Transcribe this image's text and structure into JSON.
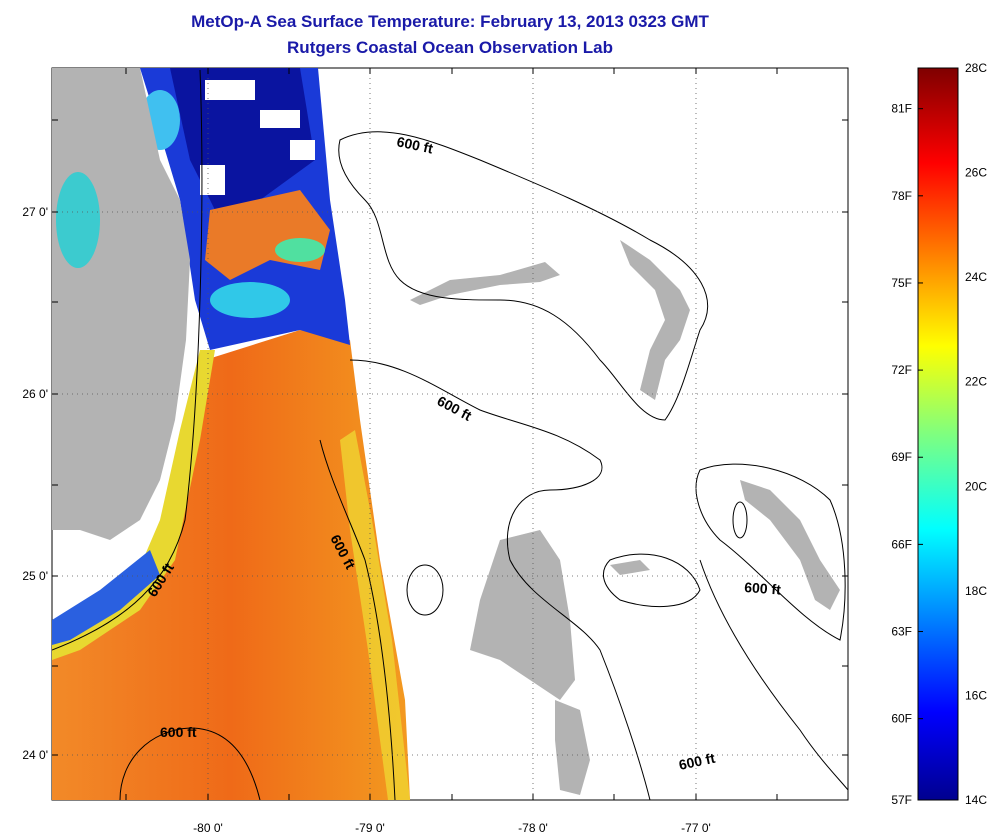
{
  "title": "MetOp-A Sea Surface Temperature:  February 13, 2013 0323 GMT",
  "subtitle": "Rutgers Coastal Ocean Observation Lab",
  "map": {
    "lat_labels": [
      "27 0'",
      "26 0'",
      "25 0'",
      "24 0'"
    ],
    "lon_labels": [
      "-80 0'",
      "-79 0'",
      "-78 0'",
      "-77 0'"
    ],
    "contour_label": "600 ft",
    "colors": {
      "land": "#b3b3b3",
      "warm": "#f07a20",
      "warm_dark": "#e85a10",
      "yellow": "#f2e020",
      "cold": "#0a1aa8",
      "cold_mid": "#1e90ff",
      "cyan": "#30d0f0"
    }
  },
  "colorbar": {
    "celsius": [
      "28C",
      "26C",
      "24C",
      "22C",
      "20C",
      "18C",
      "16C",
      "14C"
    ],
    "fahrenheit": [
      "81F",
      "78F",
      "75F",
      "72F",
      "69F",
      "66F",
      "63F",
      "60F",
      "57F"
    ]
  }
}
